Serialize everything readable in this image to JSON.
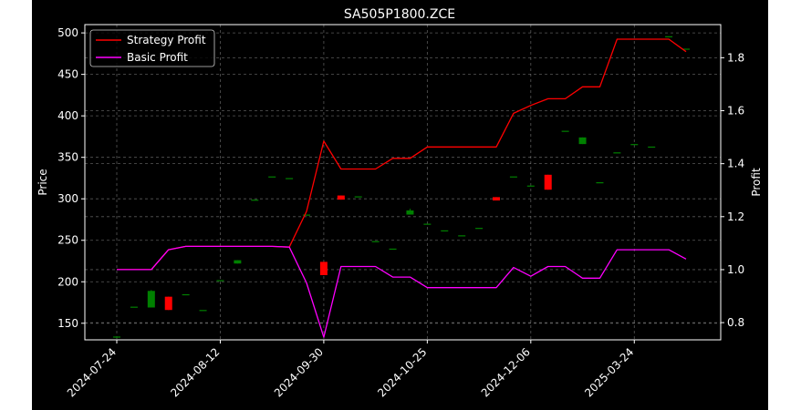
{
  "chart_data": {
    "type": "line",
    "title": "SA505P1800.ZCE",
    "ylabel": "Price",
    "y2label": "Profit",
    "ylim": [
      130,
      510
    ],
    "y2lim": [
      0.735,
      1.925
    ],
    "y_ticks": [
      150,
      200,
      250,
      300,
      350,
      400,
      450,
      500
    ],
    "y2_ticks": [
      0.8,
      1.0,
      1.2,
      1.4,
      1.6,
      1.8
    ],
    "x_tick_labels": [
      "2024-07-24",
      "2024-08-12",
      "2024-09-30",
      "2024-10-25",
      "2024-12-06",
      "2025-03-24"
    ],
    "x_tick_index": [
      0,
      6,
      12,
      18,
      24,
      30
    ],
    "grid": true,
    "legend_position": "top-left",
    "series": [
      {
        "name": "Strategy Profit",
        "color": "#ff0000",
        "axis": "right",
        "values": [
          1.0,
          1.0,
          1.0,
          1.075,
          1.088,
          1.088,
          1.088,
          1.088,
          1.088,
          1.088,
          1.085,
          1.22,
          1.485,
          1.38,
          1.38,
          1.38,
          1.42,
          1.42,
          1.463,
          1.463,
          1.463,
          1.463,
          1.463,
          1.59,
          1.62,
          1.645,
          1.645,
          1.69,
          1.69,
          1.87,
          1.87,
          1.87,
          1.87,
          1.823
        ]
      },
      {
        "name": "Basic Profit",
        "color": "#ff00ff",
        "axis": "right",
        "values": [
          1.0,
          1.0,
          1.0,
          1.075,
          1.088,
          1.088,
          1.088,
          1.088,
          1.088,
          1.088,
          1.085,
          0.95,
          0.745,
          1.012,
          1.012,
          1.012,
          0.972,
          0.972,
          0.932,
          0.932,
          0.932,
          0.932,
          0.932,
          1.008,
          0.975,
          1.012,
          1.012,
          0.968,
          0.968,
          1.075,
          1.075,
          1.075,
          1.075,
          1.04
        ]
      }
    ],
    "candles": [
      {
        "o": 133,
        "h": 134,
        "l": 132,
        "c": 134
      },
      {
        "o": 170,
        "h": 170,
        "l": 170,
        "c": 170
      },
      {
        "o": 169,
        "h": 190,
        "l": 169,
        "c": 189
      },
      {
        "o": 182,
        "h": 182,
        "l": 166,
        "c": 166
      },
      {
        "o": 185,
        "h": 185,
        "l": 185,
        "c": 185
      },
      {
        "o": 166,
        "h": 166,
        "l": 166,
        "c": 166
      },
      {
        "o": 202,
        "h": 202,
        "l": 202,
        "c": 202
      },
      {
        "o": 222,
        "h": 226,
        "l": 222,
        "c": 226
      },
      {
        "o": 299,
        "h": 299,
        "l": 299,
        "c": 299
      },
      {
        "o": 327,
        "h": 327,
        "l": 327,
        "c": 327
      },
      {
        "o": 325,
        "h": 325,
        "l": 325,
        "c": 325
      },
      {
        "o": 281,
        "h": 281,
        "l": 281,
        "c": 281
      },
      {
        "o": 224,
        "h": 224,
        "l": 208,
        "c": 208
      },
      {
        "o": 304,
        "h": 304,
        "l": 299,
        "c": 299
      },
      {
        "o": 303,
        "h": 303,
        "l": 303,
        "c": 303
      },
      {
        "o": 249,
        "h": 249,
        "l": 249,
        "c": 249
      },
      {
        "o": 240,
        "h": 240,
        "l": 240,
        "c": 240
      },
      {
        "o": 281,
        "h": 288,
        "l": 281,
        "c": 286
      },
      {
        "o": 270,
        "h": 270,
        "l": 270,
        "c": 270
      },
      {
        "o": 262,
        "h": 262,
        "l": 262,
        "c": 262
      },
      {
        "o": 256,
        "h": 256,
        "l": 256,
        "c": 256
      },
      {
        "o": 265,
        "h": 265,
        "l": 265,
        "c": 265
      },
      {
        "o": 302,
        "h": 302,
        "l": 298,
        "c": 298
      },
      {
        "o": 327,
        "h": 327,
        "l": 327,
        "c": 327
      },
      {
        "o": 316,
        "h": 316,
        "l": 316,
        "c": 316
      },
      {
        "o": 329,
        "h": 329,
        "l": 311,
        "c": 311
      },
      {
        "o": 382,
        "h": 382,
        "l": 382,
        "c": 382
      },
      {
        "o": 366,
        "h": 374,
        "l": 366,
        "c": 374
      },
      {
        "o": 320,
        "h": 320,
        "l": 320,
        "c": 320
      },
      {
        "o": 356,
        "h": 356,
        "l": 356,
        "c": 356
      },
      {
        "o": 366,
        "h": 366,
        "l": 366,
        "c": 366
      },
      {
        "o": 363,
        "h": 363,
        "l": 363,
        "c": 363
      },
      {
        "o": 496,
        "h": 496,
        "l": 496,
        "c": 496
      },
      {
        "o": 481,
        "h": 481,
        "l": 481,
        "c": 481
      }
    ],
    "candle_up_color": "#008000",
    "candle_down_color": "#ff0000"
  }
}
